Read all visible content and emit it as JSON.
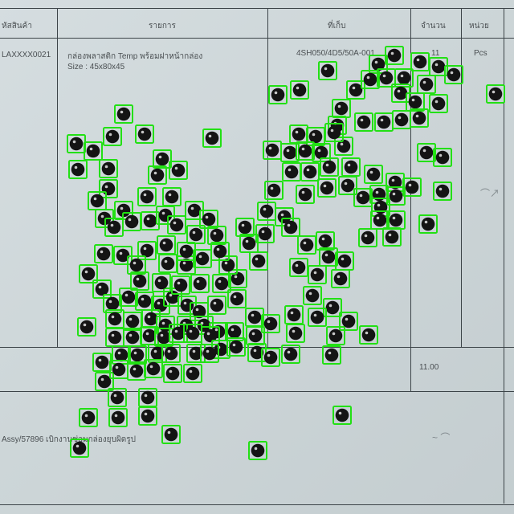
{
  "document": {
    "headers": {
      "code": "หัสสินค้า",
      "item": "รายการ",
      "location": "ที่เก็บ",
      "quantity": "จำนวน",
      "unit": "หน่วย"
    },
    "row": {
      "code": "LAXXXX0021",
      "item": "กล่องพลาสติก Temp พร้อมฝาหน้ากล่อง",
      "size": "Size : 45x80x45",
      "location": "4SH050/4D5/50A-001",
      "quantity": "11",
      "unit": "Pcs"
    },
    "total": "11.00",
    "remark": "Assy/57896 เบิกงานซ่อมกล่องยุบผิดรูป"
  },
  "overlay": {
    "object": "black-bead",
    "box_color": "#22e014",
    "bead_color": "#141414"
  }
}
